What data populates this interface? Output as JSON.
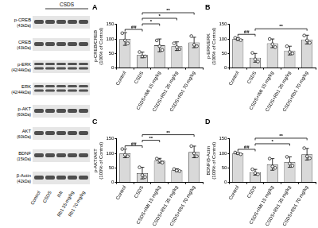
{
  "blot": {
    "group_label": "CSDS",
    "lanes": [
      "Control",
      "CSDS",
      "IMI",
      "Rb1 35 mg/kg",
      "Rb1 70 mg/kg"
    ],
    "rows": [
      {
        "protein": "p-CREB",
        "size": "(43kDa)"
      },
      {
        "protein": "CREB",
        "size": "(43kDa)"
      },
      {
        "protein": "p-ERK",
        "size": "(42/44kDa)"
      },
      {
        "protein": "ERK",
        "size": "(42/44kDa)"
      },
      {
        "protein": "p-AKT",
        "size": "(60kDa)"
      },
      {
        "protein": "AKT",
        "size": "(60kDa)"
      },
      {
        "protein": "BDNF",
        "size": "(15kDa)"
      },
      {
        "protein": "β-Actin",
        "size": "(42kDa)"
      }
    ]
  },
  "chart_data": [
    {
      "type": "bar",
      "title": "A",
      "y_label": [
        "p-CREB/CREB",
        "(100% of Control)"
      ],
      "categories": [
        "Control",
        "CSDS",
        "CSDS+IMI 15 mg/kg",
        "CSDS+Rb1 35 mg/kg",
        "CSDS+Rb1 70 mg/kg"
      ],
      "values": [
        100,
        45,
        78,
        75,
        88
      ],
      "errors": [
        22,
        10,
        22,
        15,
        18
      ],
      "points": [
        [
          120,
          95,
          85
        ],
        [
          55,
          40,
          40
        ],
        [
          95,
          75,
          62
        ],
        [
          85,
          72,
          65
        ],
        [
          110,
          80,
          75
        ]
      ],
      "color": "#d9d9d9",
      "ylim": [
        0,
        150
      ],
      "yticks": [
        0,
        50,
        100,
        150
      ],
      "grid": false,
      "annotations": [
        {
          "from": "Control",
          "to": "CSDS",
          "text": "##"
        },
        {
          "from": "CSDS",
          "to": "CSDS+IMI 15 mg/kg",
          "text": "*"
        },
        {
          "from": "CSDS",
          "to": "CSDS+Rb1 35 mg/kg",
          "text": "*"
        },
        {
          "from": "CSDS",
          "to": "CSDS+Rb1 70 mg/kg",
          "text": "**"
        }
      ]
    },
    {
      "type": "bar",
      "title": "B",
      "y_label": [
        "p-ERK/ERK",
        "(100% of Control)"
      ],
      "categories": [
        "Control",
        "CSDS",
        "CSDS+IMI 15 mg/kg",
        "CSDS+Rb1 35 mg/kg",
        "CSDS+Rb1 70 mg/kg"
      ],
      "values": [
        100,
        35,
        85,
        60,
        98
      ],
      "errors": [
        5,
        15,
        15,
        15,
        15
      ],
      "points": [
        [
          104,
          100,
          96
        ],
        [
          52,
          30,
          22
        ],
        [
          100,
          82,
          72
        ],
        [
          75,
          55,
          50
        ],
        [
          112,
          95,
          87
        ]
      ],
      "color": "#d9d9d9",
      "ylim": [
        0,
        150
      ],
      "yticks": [
        0,
        50,
        100,
        150
      ],
      "grid": false,
      "annotations": [
        {
          "from": "Control",
          "to": "CSDS",
          "text": "##"
        },
        {
          "from": "CSDS",
          "to": "CSDS+Rb1 70 mg/kg",
          "text": "**"
        }
      ]
    },
    {
      "type": "bar",
      "title": "C",
      "y_label": [
        "p-AKT/AKT",
        "(100% of Control)"
      ],
      "categories": [
        "Control",
        "CSDS",
        "CSDS+IMI 15 mg/kg",
        "CSDS+Rb1 35 mg/kg",
        "CSDS+Rb1 70 mg/kg"
      ],
      "values": [
        100,
        32,
        75,
        42,
        105
      ],
      "errors": [
        15,
        20,
        8,
        5,
        20
      ],
      "points": [
        [
          115,
          95,
          90
        ],
        [
          52,
          25,
          18
        ],
        [
          82,
          75,
          68
        ],
        [
          46,
          41,
          39
        ],
        [
          125,
          100,
          90
        ]
      ],
      "color": "#d9d9d9",
      "ylim": [
        0,
        150
      ],
      "yticks": [
        0,
        50,
        100,
        150
      ],
      "grid": false,
      "annotations": [
        {
          "from": "Control",
          "to": "CSDS",
          "text": "##"
        },
        {
          "from": "CSDS",
          "to": "CSDS+IMI 15 mg/kg",
          "text": "**"
        },
        {
          "from": "CSDS",
          "to": "CSDS+Rb1 70 mg/kg",
          "text": "**"
        }
      ]
    },
    {
      "type": "bar",
      "title": "D",
      "y_label": [
        "BDNF/β-Actin",
        "(100% of Control)"
      ],
      "categories": [
        "Control",
        "CSDS",
        "CSDS+IMI 15 mg/kg",
        "CSDS+Rb1 35 mg/kg",
        "CSDS+Rb1 70 mg/kg"
      ],
      "values": [
        100,
        35,
        62,
        70,
        97
      ],
      "errors": [
        3,
        10,
        20,
        18,
        20
      ],
      "points": [
        [
          103,
          100,
          97
        ],
        [
          45,
          32,
          28
        ],
        [
          82,
          55,
          50
        ],
        [
          88,
          65,
          57
        ],
        [
          118,
          90,
          83
        ]
      ],
      "color": "#d9d9d9",
      "ylim": [
        0,
        150
      ],
      "yticks": [
        0,
        50,
        100,
        150
      ],
      "grid": false,
      "annotations": [
        {
          "from": "Control",
          "to": "CSDS",
          "text": "##"
        },
        {
          "from": "CSDS",
          "to": "CSDS+Rb1 35 mg/kg",
          "text": "*"
        },
        {
          "from": "CSDS",
          "to": "CSDS+Rb1 70 mg/kg",
          "text": "**"
        }
      ]
    }
  ]
}
